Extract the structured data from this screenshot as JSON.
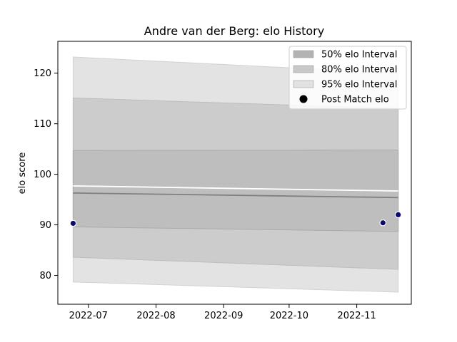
{
  "chart_data": {
    "type": "area",
    "title": "Andre van der Berg: elo History",
    "xlabel": "",
    "ylabel": "elo score",
    "x_range": [
      "2022-06-17",
      "2022-11-26"
    ],
    "ylim": [
      74.3,
      126.3
    ],
    "x_ticks": [
      {
        "date": "2022-07-01",
        "label": "2022-07"
      },
      {
        "date": "2022-08-01",
        "label": "2022-08"
      },
      {
        "date": "2022-09-01",
        "label": "2022-09"
      },
      {
        "date": "2022-10-01",
        "label": "2022-10"
      },
      {
        "date": "2022-11-01",
        "label": "2022-11"
      }
    ],
    "y_ticks": [
      80,
      90,
      100,
      110,
      120
    ],
    "grid": false,
    "legend_position": "upper right",
    "interval_dates": [
      "2022-06-24",
      "2022-11-20"
    ],
    "intervals": [
      {
        "name": "95% elo Interval",
        "color": "#e3e3e3",
        "border": "#d2d2d2",
        "lower": [
          78.7,
          76.7
        ],
        "upper": [
          123.2,
          120.0
        ]
      },
      {
        "name": "80% elo Interval",
        "color": "#cccccc",
        "border": "#bdbdbd",
        "lower": [
          83.6,
          81.2
        ],
        "upper": [
          115.1,
          113.0
        ]
      },
      {
        "name": "50% elo Interval",
        "color": "#bebebe",
        "border": "#aaaaaa",
        "lower": [
          89.6,
          88.7
        ],
        "upper": [
          104.7,
          104.8
        ]
      }
    ],
    "lines": [
      {
        "role": "upper reference",
        "color": "#ffffff",
        "values": [
          97.7,
          96.7
        ]
      },
      {
        "role": "mean",
        "color": "#808080",
        "values": [
          96.3,
          95.4
        ]
      }
    ],
    "points": {
      "name": "Post Match elo",
      "color": "#0b0b6e",
      "legend_color": "#000000",
      "data": [
        {
          "x": "2022-06-24",
          "y": 90.3
        },
        {
          "x": "2022-11-13",
          "y": 90.4
        },
        {
          "x": "2022-11-20",
          "y": 92.0
        }
      ]
    },
    "legend_entries": [
      {
        "label": "50% elo Interval",
        "swatch": "#b3b3b3",
        "marker": "rect"
      },
      {
        "label": "80% elo Interval",
        "swatch": "#c8c8c8",
        "marker": "rect"
      },
      {
        "label": "95% elo Interval",
        "swatch": "#e1e1e1",
        "marker": "rect"
      },
      {
        "label": "Post Match elo",
        "swatch": "#000000",
        "marker": "circle"
      }
    ]
  }
}
